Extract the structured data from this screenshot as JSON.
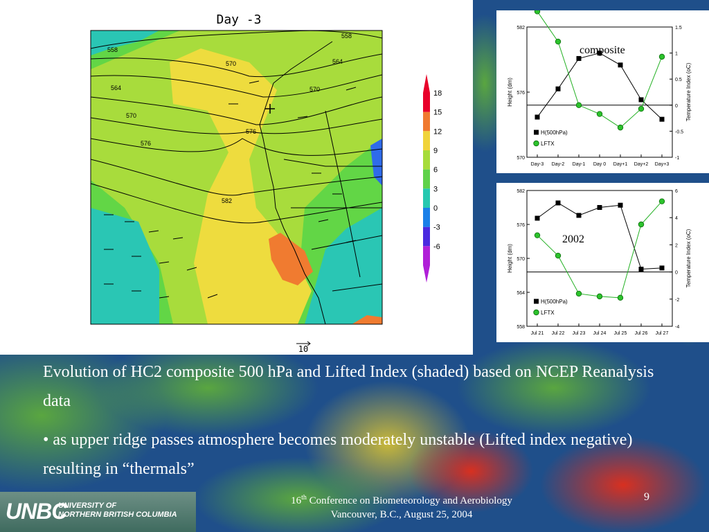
{
  "slide": {
    "caption": "Evolution of HC2 composite 500 hPa and Lifted Index (shaded) based on NCEP Reanalysis data",
    "bullet": "• as upper ridge passes atmosphere becomes moderately unstable (Lifted index negative) resulting in “thermals”",
    "footer": {
      "conf_pre": "16",
      "conf_sup": "th",
      "conf_rest": " Conference on Biometeorology and Aerobiology",
      "line2": "Vancouver, B.C., August 25, 2004"
    },
    "page_number": "9",
    "logo": {
      "mark": "UNBC",
      "line1": "UNIVERSITY OF",
      "line2": "NORTHERN BRITISH COLUMBIA"
    }
  },
  "map": {
    "title": "Day  -3",
    "vector_ref": "10",
    "colorbar": {
      "labels": [
        "18",
        "15",
        "12",
        "9",
        "6",
        "3",
        "0",
        "-3",
        "-6"
      ],
      "colors": [
        "#e8002a",
        "#f07a30",
        "#f0d33a",
        "#a6dc3a",
        "#5fd24a",
        "#26c8b0",
        "#1a80e8",
        "#4a2ae0",
        "#b020d8"
      ]
    },
    "contour_labels": [
      "558",
      "558",
      "564",
      "564",
      "570",
      "570",
      "570",
      "576",
      "576",
      "582"
    ],
    "colors": {
      "blue": "#2f6bea",
      "teal": "#2ac6b4",
      "green": "#62d646",
      "lime": "#a8dc3c",
      "yellow": "#eedc3e",
      "orange": "#f07b30"
    }
  },
  "chart_data": [
    {
      "type": "line",
      "annotation": "composite",
      "x": [
        "Day-3",
        "Day-2",
        "Day-1",
        "Day 0",
        "Day+1",
        "Day+2",
        "Day+3"
      ],
      "series": [
        {
          "name": "H(500hPa)",
          "axis": "left",
          "marker": "square",
          "color": "#000000",
          "values": [
            573.7,
            576.3,
            579.1,
            579.6,
            578.5,
            575.3,
            573.5
          ]
        },
        {
          "name": "LFTX",
          "axis": "right",
          "marker": "circle",
          "color": "#22b022",
          "values": [
            1.8,
            1.22,
            0.0,
            -0.17,
            -0.43,
            -0.07,
            0.93
          ]
        }
      ],
      "ylabel": "Height (dm)",
      "ylim": [
        570,
        582
      ],
      "yticks": [
        570,
        576,
        582
      ],
      "y2label": "Temperature Index (oC)",
      "y2lim": [
        -1,
        1.5
      ],
      "y2ticks": [
        -1,
        -0.5,
        0,
        0.5,
        1,
        1.5
      ],
      "y2ticklabels": [
        "-1",
        "-0.5",
        "0",
        "0.5",
        "1",
        "1.5"
      ],
      "legend": "bottom-left"
    },
    {
      "type": "line",
      "annotation": "2002",
      "x": [
        "Jul 21",
        "Jul 22",
        "Jul 23",
        "Jul 24",
        "Jul 25",
        "Jul 26",
        "Jul 27"
      ],
      "series": [
        {
          "name": "H(500hPa)",
          "axis": "left",
          "marker": "square",
          "color": "#000000",
          "values": [
            577.1,
            579.8,
            577.6,
            579.0,
            579.4,
            568.1,
            568.3
          ]
        },
        {
          "name": "LFTX",
          "axis": "right",
          "marker": "circle",
          "color": "#22b022",
          "values": [
            2.7,
            1.2,
            -1.6,
            -1.8,
            -1.9,
            3.5,
            5.2
          ]
        }
      ],
      "ylabel": "Height (dm)",
      "ylim": [
        558,
        582
      ],
      "yticks": [
        558,
        564,
        570,
        576,
        582
      ],
      "y2label": "Temperature Index (oC)",
      "y2lim": [
        -4,
        6
      ],
      "y2ticks": [
        -4,
        -2,
        0,
        2,
        4,
        6
      ],
      "y2ticklabels": [
        "-4",
        "-2",
        "0",
        "2",
        "4",
        "6"
      ],
      "legend": "bottom-left"
    }
  ]
}
